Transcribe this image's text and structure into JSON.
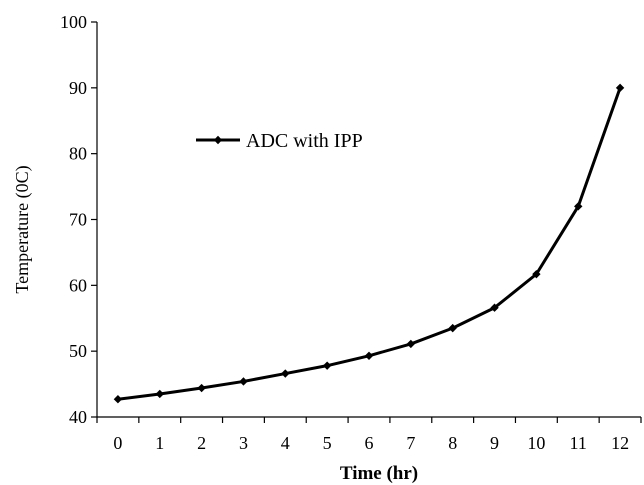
{
  "chart_data": {
    "type": "line",
    "title": "",
    "xlabel": "Time (hr)",
    "ylabel": "Temperature (0C)",
    "x": [
      0,
      1,
      2,
      3,
      4,
      5,
      6,
      7,
      8,
      9,
      10,
      11,
      12
    ],
    "xlim": [
      -0.5,
      12.5
    ],
    "ylim": [
      40,
      100
    ],
    "yticks": [
      40,
      50,
      60,
      70,
      80,
      90,
      100
    ],
    "grid": false,
    "legend_position": "upper-left",
    "series": [
      {
        "name": "ADC with IPP",
        "color": "#000000",
        "marker": "diamond",
        "values": [
          42.7,
          43.5,
          44.4,
          45.4,
          46.6,
          47.8,
          49.3,
          51.1,
          53.5,
          56.6,
          61.7,
          72.0,
          90.0
        ]
      }
    ]
  }
}
